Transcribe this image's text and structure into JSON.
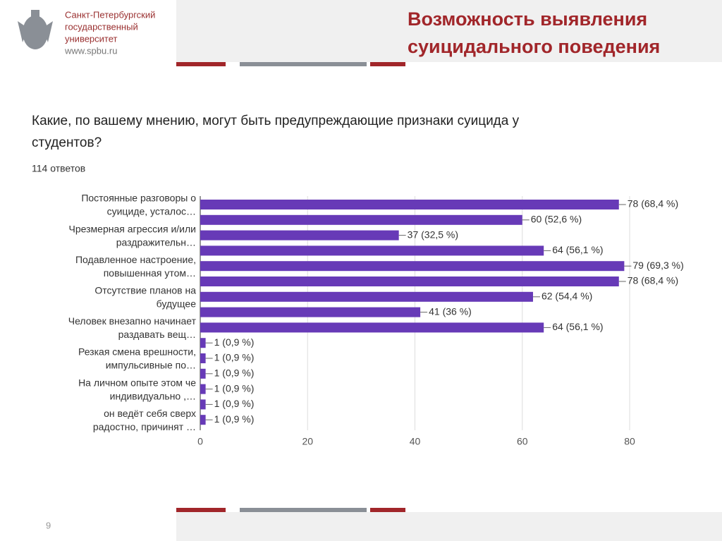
{
  "header": {
    "university": [
      "Санкт-Петербургский",
      "государственный",
      "университет",
      "www.spbu.ru"
    ],
    "title": [
      "Возможность выявления",
      "суицидального поведения"
    ]
  },
  "chart_data": {
    "type": "bar",
    "orientation": "horizontal",
    "title": [
      "Какие, по вашему мнению, могут быть предупреждающие признаки суицида у",
      "студентов?"
    ],
    "subtitle": "114 ответов",
    "categories": [
      [
        "Постоянные разговоры о",
        "суициде, усталос…"
      ],
      null,
      [
        "Чрезмерная агрессия и/или",
        "раздражительн…"
      ],
      null,
      [
        "Подавленное настроение,",
        "повышенная утом…"
      ],
      null,
      [
        "Отсутствие планов на",
        "будущее"
      ],
      null,
      [
        "Человек внезапно начинает",
        "раздавать вещ…"
      ],
      null,
      [
        "Резкая смена врешности,",
        "импульсивные по…"
      ],
      null,
      [
        "На личном опыте этом че",
        "индивидуально ,…"
      ],
      null,
      [
        "он ведёт себя сверх",
        "радостно, причинят …"
      ]
    ],
    "values": [
      78,
      60,
      37,
      64,
      79,
      78,
      62,
      41,
      64,
      1,
      1,
      1,
      1,
      1,
      1
    ],
    "value_labels": [
      "78 (68,4 %)",
      "60 (52,6 %)",
      "37 (32,5 %)",
      "64 (56,1 %)",
      "79 (69,3 %)",
      "78 (68,4 %)",
      "62 (54,4 %)",
      "41 (36 %)",
      "64 (56,1 %)",
      "1 (0,9 %)",
      "1 (0,9 %)",
      "1 (0,9 %)",
      "1 (0,9 %)",
      "1 (0,9 %)",
      "1 (0,9 %)"
    ],
    "color": "#673ab7",
    "xlim": [
      0,
      80
    ],
    "xticks": [
      0,
      20,
      40,
      60,
      80
    ],
    "grid": true
  },
  "footer": {
    "page": "9"
  }
}
